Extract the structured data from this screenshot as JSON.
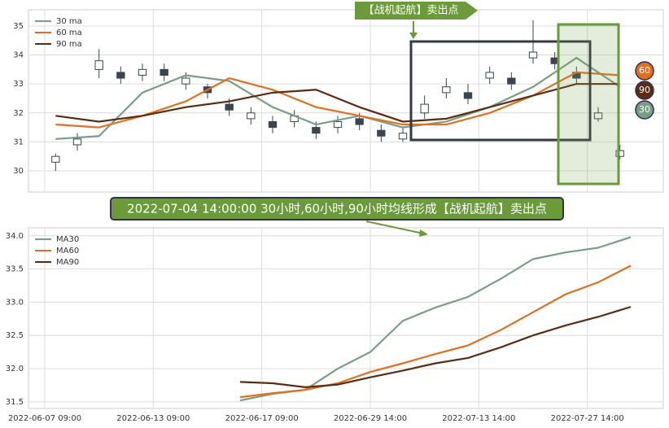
{
  "chart_data": [
    {
      "type": "candlestick",
      "annotation": "【战机起航】卖出点",
      "end_labels": [
        "60",
        "90",
        "30"
      ],
      "x": [
        1,
        3,
        5,
        7,
        9,
        11,
        13,
        15,
        17,
        19,
        21,
        23,
        25,
        27,
        29,
        31,
        33,
        35,
        37,
        39,
        41,
        43,
        45,
        47,
        49,
        51,
        53
      ],
      "open": [
        30.3,
        30.9,
        33.5,
        33.4,
        33.3,
        33.5,
        33.0,
        32.9,
        32.3,
        31.8,
        31.7,
        31.7,
        31.5,
        31.5,
        31.8,
        31.4,
        31.1,
        32.0,
        32.7,
        32.7,
        33.2,
        33.2,
        33.9,
        33.9,
        33.4,
        31.8,
        30.5
      ],
      "close": [
        30.5,
        31.1,
        33.8,
        33.2,
        33.5,
        33.3,
        33.2,
        32.7,
        32.1,
        32.0,
        31.5,
        31.9,
        31.3,
        31.7,
        31.6,
        31.2,
        31.3,
        32.3,
        32.9,
        32.5,
        33.4,
        33.0,
        34.1,
        33.7,
        33.2,
        32.0,
        30.7
      ],
      "high": [
        30.6,
        31.3,
        34.2,
        33.6,
        33.7,
        33.7,
        33.4,
        33.0,
        32.5,
        32.2,
        31.9,
        32.1,
        31.7,
        31.9,
        32.0,
        31.6,
        31.5,
        32.6,
        33.2,
        33.0,
        33.6,
        33.4,
        35.2,
        34.1,
        33.6,
        32.2,
        30.9
      ],
      "low": [
        30.0,
        30.7,
        33.2,
        33.0,
        33.1,
        33.1,
        32.8,
        32.5,
        31.9,
        31.6,
        31.3,
        31.5,
        31.1,
        31.3,
        31.4,
        31.0,
        31.0,
        31.8,
        32.5,
        32.3,
        33.0,
        32.8,
        33.7,
        33.5,
        33.0,
        31.7,
        30.4
      ],
      "candle_color": "#3a4452",
      "series": [
        {
          "name": "30 ma",
          "color": "#7a9e84",
          "x": [
            1,
            5,
            9,
            13,
            17,
            21,
            25,
            29,
            33,
            37,
            41,
            45,
            49,
            53
          ],
          "values": [
            31.1,
            31.2,
            32.7,
            33.3,
            33.1,
            32.2,
            31.6,
            31.9,
            31.5,
            31.7,
            32.2,
            32.9,
            33.9,
            32.9
          ]
        },
        {
          "name": "60 ma",
          "color": "#e07020",
          "x": [
            1,
            5,
            9,
            13,
            17,
            21,
            25,
            29,
            33,
            37,
            41,
            45,
            49,
            53
          ],
          "values": [
            31.6,
            31.5,
            31.9,
            32.4,
            33.2,
            32.8,
            32.2,
            31.9,
            31.6,
            31.6,
            32.0,
            32.6,
            33.4,
            33.3
          ]
        },
        {
          "name": "90 ma",
          "color": "#5a2d14",
          "x": [
            1,
            5,
            9,
            13,
            17,
            21,
            25,
            29,
            33,
            37,
            41,
            45,
            49,
            53
          ],
          "values": [
            31.9,
            31.7,
            31.9,
            32.2,
            32.4,
            32.7,
            32.8,
            32.2,
            31.7,
            31.8,
            32.2,
            32.6,
            33.0,
            33.0
          ]
        }
      ],
      "xlim": [
        -1.5,
        57
      ],
      "ylim": [
        29.27,
        35.56
      ],
      "yticks": [
        30,
        31,
        32,
        33,
        34,
        35
      ],
      "grid": true
    },
    {
      "type": "line",
      "annotation": "2022-07-04 14:00:00 30小时,60小时,90小时均线形成【战机起航】卖出点",
      "x": [
        18,
        21,
        24,
        27,
        30,
        33,
        36,
        39,
        42,
        45,
        48,
        51,
        54
      ],
      "series": [
        {
          "name": "MA30",
          "color": "#7a9e84",
          "values": [
            31.52,
            31.62,
            31.68,
            32.0,
            32.25,
            32.72,
            32.92,
            33.08,
            33.35,
            33.65,
            33.75,
            33.82,
            33.98
          ]
        },
        {
          "name": "MA60",
          "color": "#e07020",
          "values": [
            31.57,
            31.63,
            31.68,
            31.78,
            31.95,
            32.08,
            32.22,
            32.35,
            32.58,
            32.85,
            33.12,
            33.3,
            33.55
          ]
        },
        {
          "name": "MA90",
          "color": "#5a2d14",
          "values": [
            31.8,
            31.78,
            31.72,
            31.76,
            31.87,
            31.97,
            32.08,
            32.16,
            32.32,
            32.5,
            32.65,
            32.78,
            32.93
          ]
        }
      ],
      "xlim": [
        -1.5,
        57
      ],
      "ylim": [
        31.4,
        34.12
      ],
      "xticks": [
        {
          "value": 0,
          "label": "2022-06-07 09:00"
        },
        {
          "value": 10,
          "label": "2022-06-13 09:00"
        },
        {
          "value": 20,
          "label": "2022-06-17 09:00"
        },
        {
          "value": 30,
          "label": "2022-06-29 14:00"
        },
        {
          "value": 40,
          "label": "2022-07-13 14:00"
        },
        {
          "value": 50,
          "label": "2022-07-27 14:00"
        }
      ],
      "yticks": [
        31.5,
        32.0,
        32.5,
        33.0,
        33.5,
        34.0
      ],
      "grid": true
    }
  ]
}
